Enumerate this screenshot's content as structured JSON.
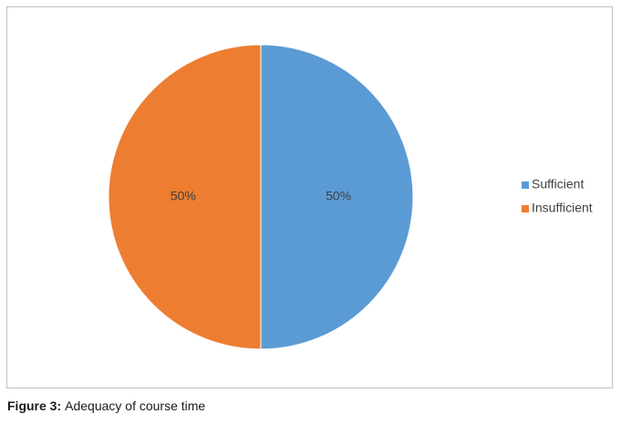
{
  "chart_data": {
    "type": "pie",
    "categories": [
      "Sufficient",
      "Insufficient"
    ],
    "values": [
      50,
      50
    ],
    "value_labels": [
      "50%",
      "50%"
    ],
    "colors": [
      "#5b9bd5",
      "#ed7d31"
    ],
    "legend": "right"
  },
  "caption": {
    "label": "Figure 3:",
    "text": "Adequacy of course time"
  }
}
